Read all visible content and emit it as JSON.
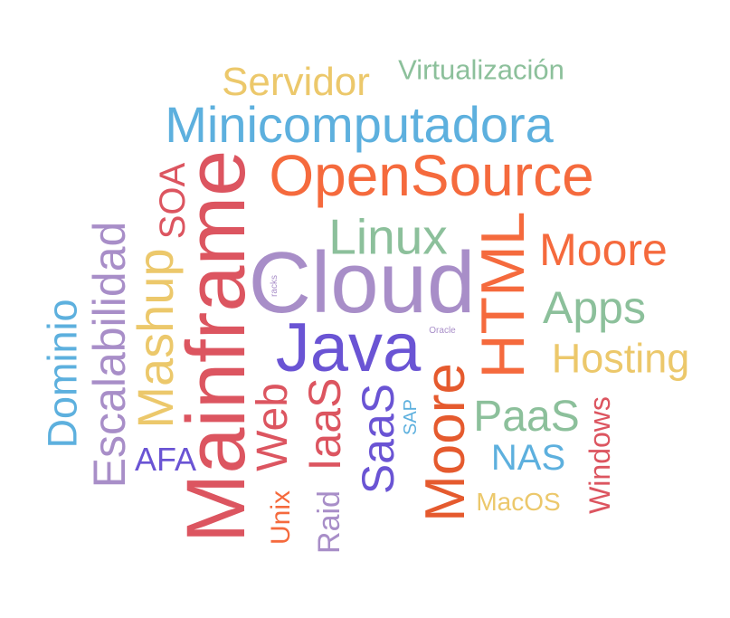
{
  "word_cloud": {
    "words": [
      {
        "text": "Servidor",
        "color": "#ecc86b"
      },
      {
        "text": "Virtualización",
        "color": "#8cc09b"
      },
      {
        "text": "Minicomputadora",
        "color": "#5db0de"
      },
      {
        "text": "OpenSource",
        "color": "#f56a3d"
      },
      {
        "text": "SOA",
        "color": "#dc5560"
      },
      {
        "text": "Linux",
        "color": "#8cc09b"
      },
      {
        "text": "Mainframe",
        "color": "#dc5560"
      },
      {
        "text": "Cloud",
        "color": "#a88ec8"
      },
      {
        "text": "racks",
        "color": "#a88ec8"
      },
      {
        "text": "HTML",
        "color": "#f56a3d"
      },
      {
        "text": "Moore",
        "color": "#f56a3d"
      },
      {
        "text": "Mashup",
        "color": "#ecc86b"
      },
      {
        "text": "Escalabilidad",
        "color": "#a88ec8"
      },
      {
        "text": "Dominio",
        "color": "#5db0de"
      },
      {
        "text": "Java",
        "color": "#6a54d4"
      },
      {
        "text": "Oracle",
        "color": "#a88ec8"
      },
      {
        "text": "Apps",
        "color": "#8cc09b"
      },
      {
        "text": "Hosting",
        "color": "#ecc86b"
      },
      {
        "text": "Web",
        "color": "#dc5560"
      },
      {
        "text": "IaaS",
        "color": "#dc5560"
      },
      {
        "text": "SaaS",
        "color": "#6a54d4"
      },
      {
        "text": "SAP",
        "color": "#5db0de"
      },
      {
        "text": "Moore",
        "color": "#e55a2e"
      },
      {
        "text": "PaaS",
        "color": "#8cc09b"
      },
      {
        "text": "Windows",
        "color": "#dc5560"
      },
      {
        "text": "NAS",
        "color": "#5db0de"
      },
      {
        "text": "AFA",
        "color": "#6a54d4"
      },
      {
        "text": "MacOS",
        "color": "#ecc86b"
      },
      {
        "text": "Unix",
        "color": "#f56a3d"
      },
      {
        "text": "Raid",
        "color": "#a88ec8"
      }
    ]
  }
}
